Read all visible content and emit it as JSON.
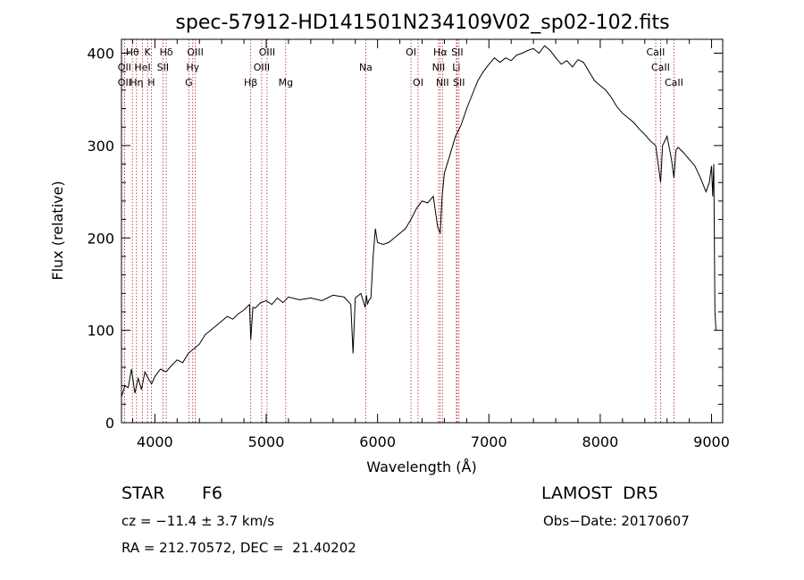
{
  "chart_data": {
    "type": "line",
    "title": "spec-57912-HD141501N234109V02_sp02-102.fits",
    "xlabel": "Wavelength (Å)",
    "ylabel": "Flux (relative)",
    "xlim": [
      3700,
      9100
    ],
    "ylim": [
      0,
      415
    ],
    "xticks": [
      4000,
      5000,
      6000,
      7000,
      8000,
      9000
    ],
    "yticks": [
      0,
      100,
      200,
      300,
      400
    ],
    "series": [
      {
        "x": [
          3700,
          3730,
          3760,
          3790,
          3820,
          3850,
          3880,
          3910,
          3940,
          3970,
          4000,
          4050,
          4100,
          4150,
          4200,
          4250,
          4300,
          4350,
          4400,
          4450,
          4500,
          4550,
          4600,
          4650,
          4700,
          4750,
          4800,
          4850,
          4861,
          4880,
          4900,
          4950,
          5000,
          5050,
          5100,
          5150,
          5200,
          5300,
          5400,
          5500,
          5600,
          5700,
          5760,
          5780,
          5800,
          5850,
          5889,
          5900,
          5910,
          5920,
          5940,
          5960,
          5980,
          6000,
          6050,
          6100,
          6150,
          6200,
          6250,
          6300,
          6350,
          6400,
          6450,
          6500,
          6540,
          6563,
          6580,
          6600,
          6650,
          6700,
          6750,
          6800,
          6850,
          6900,
          6950,
          7000,
          7050,
          7100,
          7150,
          7200,
          7250,
          7300,
          7350,
          7400,
          7450,
          7500,
          7550,
          7600,
          7650,
          7700,
          7750,
          7800,
          7850,
          7900,
          7950,
          8000,
          8050,
          8100,
          8150,
          8200,
          8250,
          8300,
          8350,
          8400,
          8450,
          8498,
          8542,
          8560,
          8600,
          8640,
          8662,
          8680,
          8700,
          8750,
          8800,
          8850,
          8900,
          8950,
          8980,
          9000,
          9010,
          9020,
          9030,
          9040
        ],
        "y": [
          28,
          40,
          38,
          58,
          32,
          48,
          36,
          55,
          48,
          42,
          50,
          58,
          55,
          62,
          68,
          65,
          75,
          80,
          85,
          95,
          100,
          105,
          110,
          115,
          112,
          118,
          122,
          128,
          90,
          125,
          124,
          130,
          132,
          128,
          135,
          130,
          136,
          133,
          135,
          132,
          138,
          136,
          128,
          75,
          135,
          140,
          125,
          138,
          128,
          132,
          135,
          180,
          210,
          195,
          193,
          195,
          200,
          205,
          210,
          220,
          232,
          240,
          238,
          245,
          212,
          205,
          245,
          270,
          290,
          310,
          322,
          340,
          355,
          370,
          380,
          388,
          395,
          390,
          395,
          392,
          398,
          400,
          403,
          405,
          400,
          408,
          403,
          395,
          388,
          392,
          385,
          393,
          390,
          380,
          370,
          365,
          360,
          352,
          342,
          335,
          330,
          325,
          318,
          312,
          305,
          300,
          260,
          300,
          310,
          285,
          265,
          295,
          298,
          292,
          285,
          278,
          265,
          250,
          260,
          278,
          245,
          280,
          120,
          100
        ]
      }
    ],
    "lines": [
      {
        "label": "Hθ",
        "x": 3798,
        "row": 0
      },
      {
        "label": "OII",
        "x": 3727,
        "row": 1
      },
      {
        "label": "OII",
        "x": 3727,
        "row": 2
      },
      {
        "label": "Hη",
        "x": 3835,
        "row": 2
      },
      {
        "label": "HeI",
        "x": 3889,
        "row": 1
      },
      {
        "label": "K",
        "x": 3934,
        "row": 0
      },
      {
        "label": "H",
        "x": 3968,
        "row": 2
      },
      {
        "label": "SII",
        "x": 4072,
        "row": 1
      },
      {
        "label": "Hδ",
        "x": 4102,
        "row": 0
      },
      {
        "label": "OIII",
        "x": 4363,
        "row": 0
      },
      {
        "label": "Hγ",
        "x": 4340,
        "row": 1
      },
      {
        "label": "G",
        "x": 4305,
        "row": 2
      },
      {
        "label": "Hβ",
        "x": 4861,
        "row": 2
      },
      {
        "label": "OIII",
        "x": 5007,
        "row": 0
      },
      {
        "label": "OIII",
        "x": 4959,
        "row": 1
      },
      {
        "label": "Mg",
        "x": 5175,
        "row": 2
      },
      {
        "label": "Na",
        "x": 5894,
        "row": 1
      },
      {
        "label": "OI",
        "x": 6300,
        "row": 0
      },
      {
        "label": "OI",
        "x": 6364,
        "row": 2
      },
      {
        "label": "Hα",
        "x": 6563,
        "row": 0
      },
      {
        "label": "NII",
        "x": 6548,
        "row": 1
      },
      {
        "label": "NII",
        "x": 6583,
        "row": 2
      },
      {
        "label": "SII",
        "x": 6716,
        "row": 0
      },
      {
        "label": "Li",
        "x": 6708,
        "row": 1
      },
      {
        "label": "SII",
        "x": 6731,
        "row": 2
      },
      {
        "label": "CaII",
        "x": 8498,
        "row": 0
      },
      {
        "label": "CaII",
        "x": 8542,
        "row": 1
      },
      {
        "label": "CaII",
        "x": 8662,
        "row": 2
      }
    ],
    "colors": {
      "spectrum": "#000000",
      "lines": "#b22222"
    }
  },
  "info": {
    "object_class": "STAR",
    "subclass": "F6",
    "survey": "LAMOST  DR5",
    "cz": "cz = −11.4 ± 3.7 km/s",
    "obs_date": "Obs−Date: 20170607",
    "coords": "RA = 212.70572, DEC =  21.40202"
  }
}
